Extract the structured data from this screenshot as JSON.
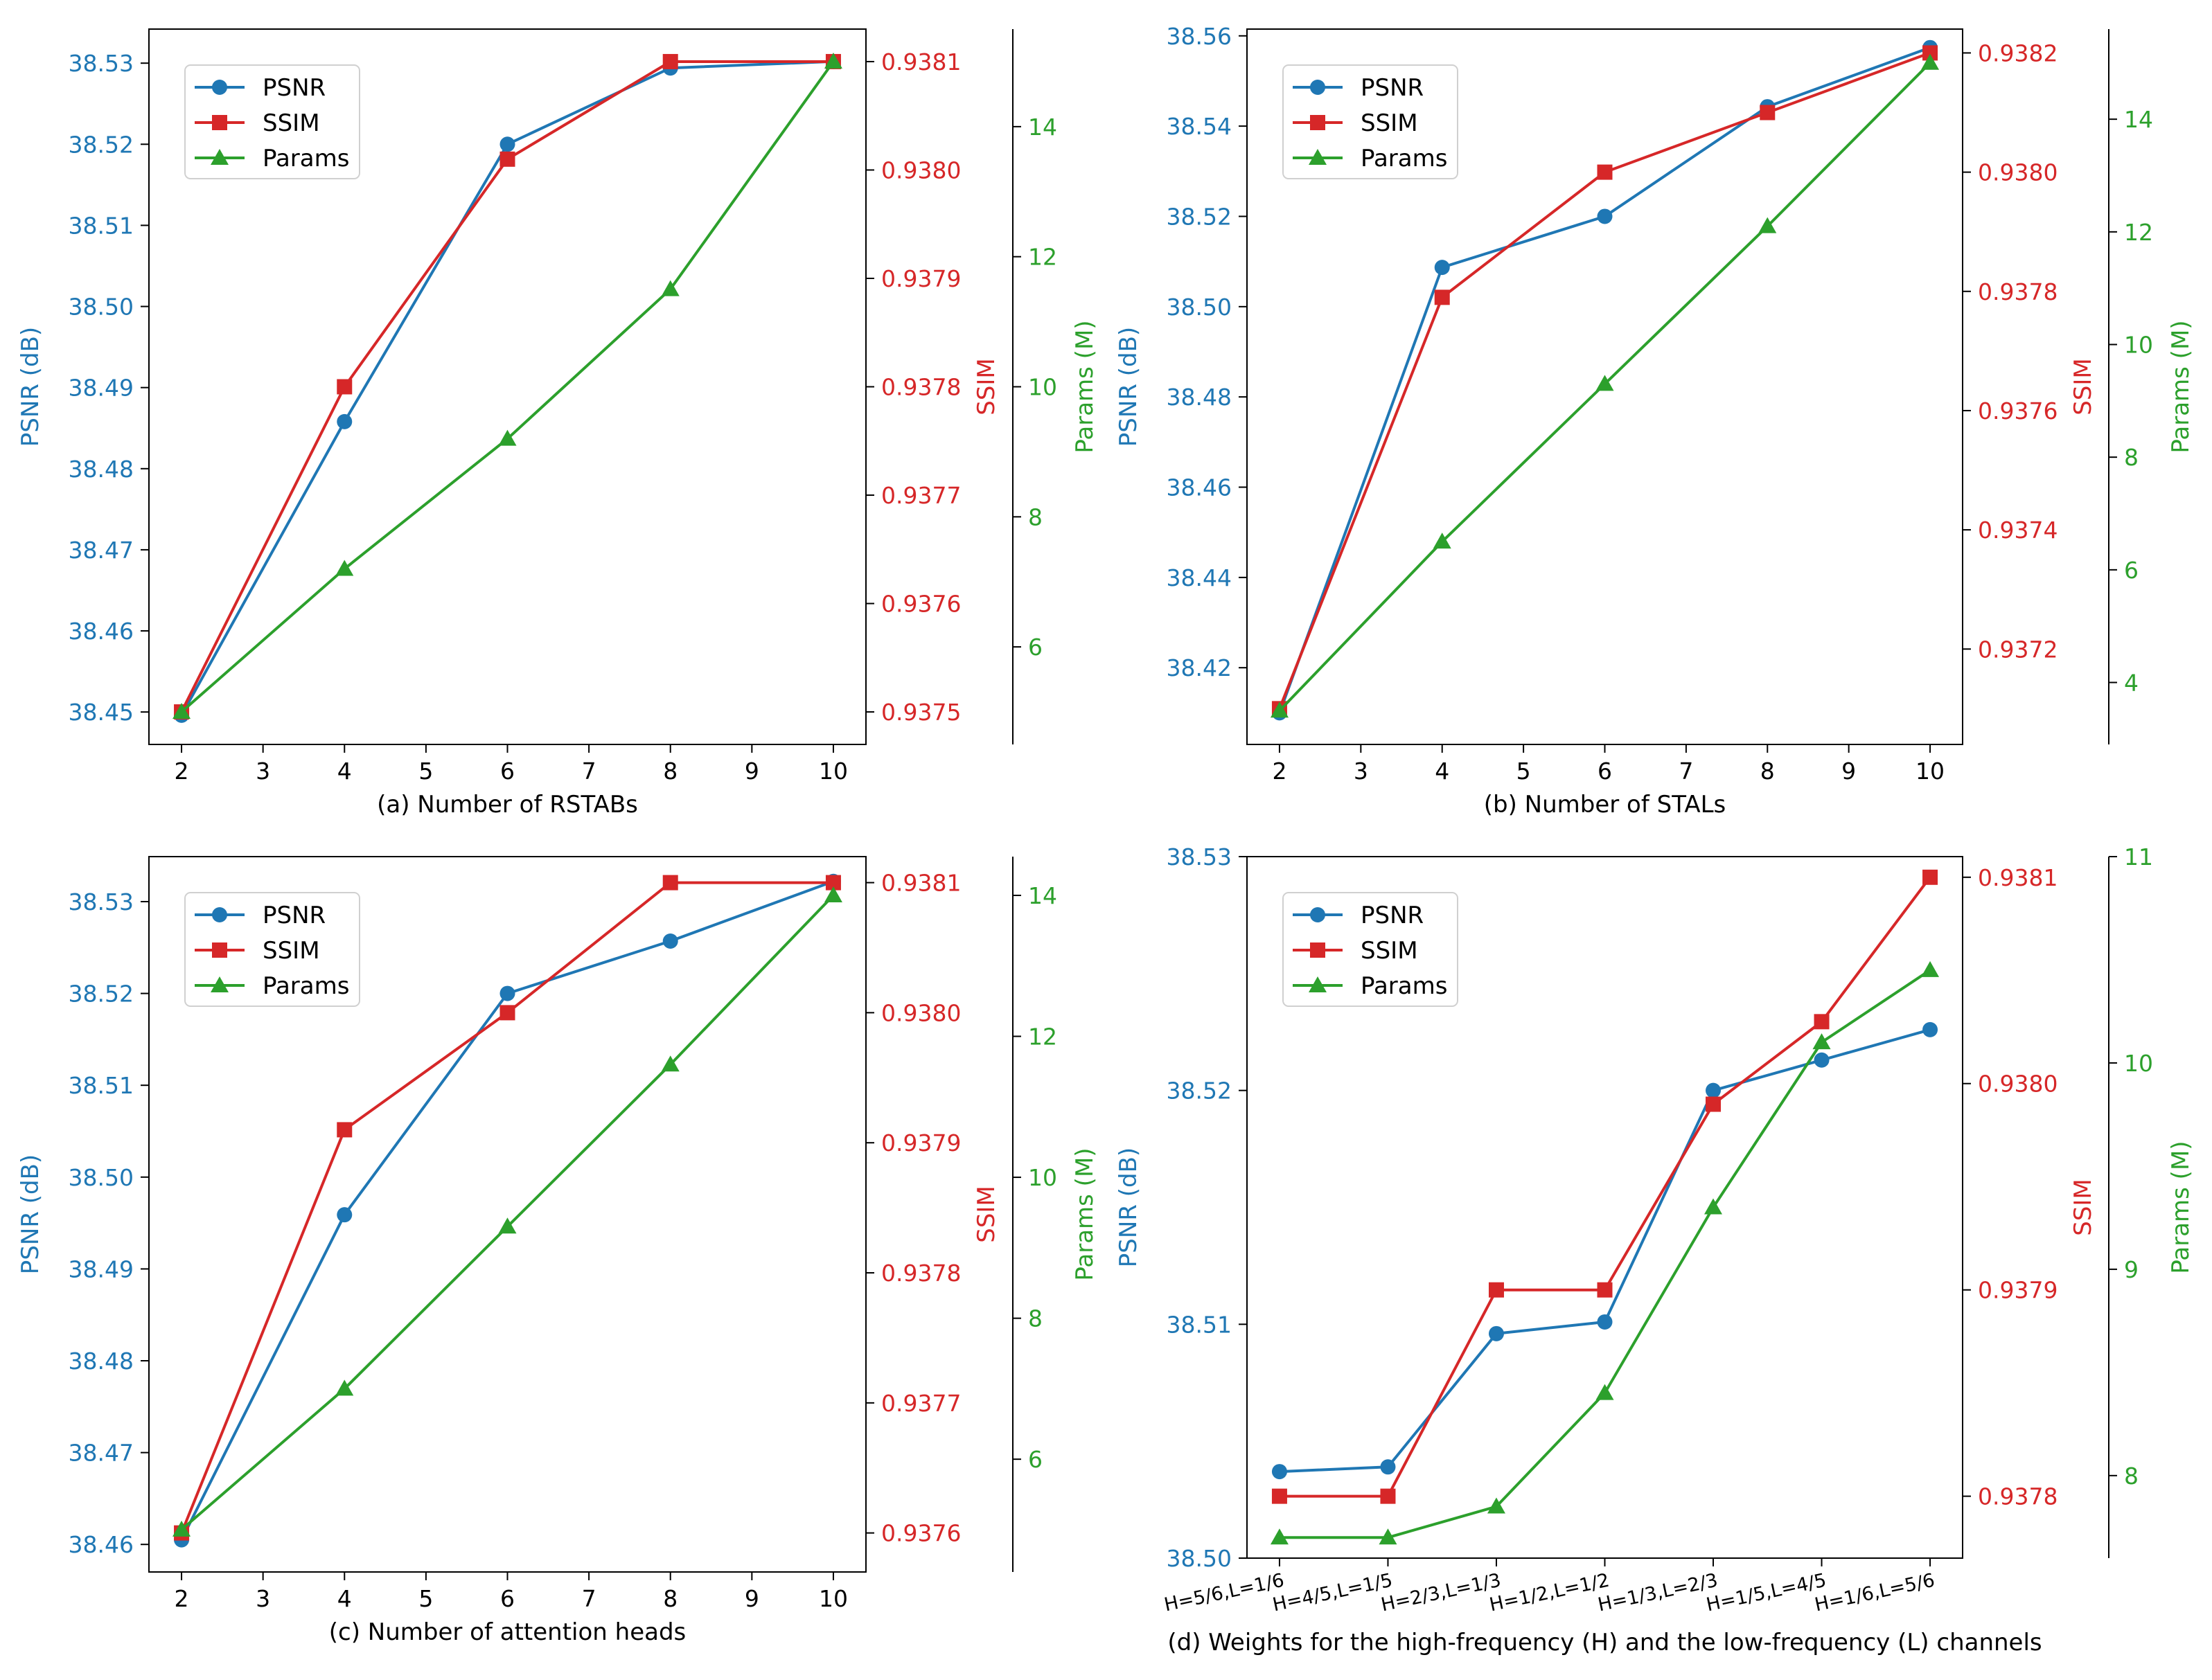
{
  "colors": {
    "psnr": "#1f77b4",
    "ssim": "#d62728",
    "params": "#2ca02c",
    "axis": "#000000"
  },
  "chart_data": [
    {
      "id": "a",
      "type": "line",
      "xlabel": "(a) Number of RSTABs",
      "categorical": false,
      "x": [
        2,
        4,
        6,
        8,
        10
      ],
      "xlim": [
        1.6,
        10.4
      ],
      "xticks": [
        {
          "v": 2,
          "label": "2"
        },
        {
          "v": 3,
          "label": "3"
        },
        {
          "v": 4,
          "label": "4"
        },
        {
          "v": 5,
          "label": "5"
        },
        {
          "v": 6,
          "label": "6"
        },
        {
          "v": 7,
          "label": "7"
        },
        {
          "v": 8,
          "label": "8"
        },
        {
          "v": 9,
          "label": "9"
        },
        {
          "v": 10,
          "label": "10"
        }
      ],
      "legend": [
        "PSNR",
        "SSIM",
        "Params"
      ],
      "legend_loc": "upper-left",
      "axes": [
        {
          "name": "PSNR (dB)",
          "key": "psnr",
          "lim": [
            38.446,
            38.5342
          ],
          "ticks": [
            {
              "v": 38.45,
              "label": "38.45"
            },
            {
              "v": 38.46,
              "label": "38.46"
            },
            {
              "v": 38.47,
              "label": "38.47"
            },
            {
              "v": 38.48,
              "label": "38.48"
            },
            {
              "v": 38.49,
              "label": "38.49"
            },
            {
              "v": 38.5,
              "label": "38.50"
            },
            {
              "v": 38.51,
              "label": "38.51"
            },
            {
              "v": 38.52,
              "label": "38.52"
            },
            {
              "v": 38.53,
              "label": "38.53"
            }
          ],
          "values": [
            38.4496,
            38.4858,
            38.52,
            38.5294,
            38.5302
          ],
          "marker": "circle"
        },
        {
          "name": "SSIM",
          "key": "ssim",
          "lim": [
            0.93747,
            0.93813
          ],
          "ticks": [
            {
              "v": 0.9375,
              "label": "0.9375"
            },
            {
              "v": 0.9376,
              "label": "0.9376"
            },
            {
              "v": 0.9377,
              "label": "0.9377"
            },
            {
              "v": 0.9378,
              "label": "0.9378"
            },
            {
              "v": 0.9379,
              "label": "0.9379"
            },
            {
              "v": 0.938,
              "label": "0.9380"
            },
            {
              "v": 0.9381,
              "label": "0.9381"
            }
          ],
          "values": [
            0.9375,
            0.9378,
            0.93801,
            0.9381,
            0.9381
          ],
          "marker": "square"
        },
        {
          "name": "Params (M)",
          "key": "params",
          "lim": [
            4.5,
            15.5
          ],
          "ticks": [
            {
              "v": 6,
              "label": "6"
            },
            {
              "v": 8,
              "label": "8"
            },
            {
              "v": 10,
              "label": "10"
            },
            {
              "v": 12,
              "label": "12"
            },
            {
              "v": 14,
              "label": "14"
            }
          ],
          "values": [
            5.0,
            7.2,
            9.2,
            11.5,
            15.0
          ],
          "marker": "triangle"
        }
      ]
    },
    {
      "id": "b",
      "type": "line",
      "xlabel": "(b) Number of STALs",
      "categorical": false,
      "x": [
        2,
        4,
        6,
        8,
        10
      ],
      "xlim": [
        1.6,
        10.4
      ],
      "xticks": [
        {
          "v": 2,
          "label": "2"
        },
        {
          "v": 3,
          "label": "3"
        },
        {
          "v": 4,
          "label": "4"
        },
        {
          "v": 5,
          "label": "5"
        },
        {
          "v": 6,
          "label": "6"
        },
        {
          "v": 7,
          "label": "7"
        },
        {
          "v": 8,
          "label": "8"
        },
        {
          "v": 9,
          "label": "9"
        },
        {
          "v": 10,
          "label": "10"
        }
      ],
      "legend": [
        "PSNR",
        "SSIM",
        "Params"
      ],
      "legend_loc": "upper-left",
      "axes": [
        {
          "name": "PSNR (dB)",
          "key": "psnr",
          "lim": [
            38.403,
            38.5615
          ],
          "ticks": [
            {
              "v": 38.42,
              "label": "38.42"
            },
            {
              "v": 38.44,
              "label": "38.44"
            },
            {
              "v": 38.46,
              "label": "38.46"
            },
            {
              "v": 38.48,
              "label": "38.48"
            },
            {
              "v": 38.5,
              "label": "38.50"
            },
            {
              "v": 38.52,
              "label": "38.52"
            },
            {
              "v": 38.54,
              "label": "38.54"
            },
            {
              "v": 38.56,
              "label": "38.56"
            }
          ],
          "values": [
            38.41,
            38.5087,
            38.52,
            38.5443,
            38.5574
          ],
          "marker": "circle"
        },
        {
          "name": "SSIM",
          "key": "ssim",
          "lim": [
            0.93704,
            0.93824
          ],
          "ticks": [
            {
              "v": 0.9372,
              "label": "0.9372"
            },
            {
              "v": 0.9374,
              "label": "0.9374"
            },
            {
              "v": 0.9376,
              "label": "0.9376"
            },
            {
              "v": 0.9378,
              "label": "0.9378"
            },
            {
              "v": 0.938,
              "label": "0.9380"
            },
            {
              "v": 0.9382,
              "label": "0.9382"
            }
          ],
          "values": [
            0.9371,
            0.93779,
            0.938,
            0.9381,
            0.9382
          ],
          "marker": "square"
        },
        {
          "name": "Params (M)",
          "key": "params",
          "lim": [
            2.9,
            15.6
          ],
          "ticks": [
            {
              "v": 4,
              "label": "4"
            },
            {
              "v": 6,
              "label": "6"
            },
            {
              "v": 8,
              "label": "8"
            },
            {
              "v": 10,
              "label": "10"
            },
            {
              "v": 12,
              "label": "12"
            },
            {
              "v": 14,
              "label": "14"
            }
          ],
          "values": [
            3.5,
            6.5,
            9.3,
            12.1,
            15.0
          ],
          "marker": "triangle"
        }
      ]
    },
    {
      "id": "c",
      "type": "line",
      "xlabel": "(c) Number of attention heads",
      "categorical": false,
      "x": [
        2,
        4,
        6,
        8,
        10
      ],
      "xlim": [
        1.6,
        10.4
      ],
      "xticks": [
        {
          "v": 2,
          "label": "2"
        },
        {
          "v": 3,
          "label": "3"
        },
        {
          "v": 4,
          "label": "4"
        },
        {
          "v": 5,
          "label": "5"
        },
        {
          "v": 6,
          "label": "6"
        },
        {
          "v": 7,
          "label": "7"
        },
        {
          "v": 8,
          "label": "8"
        },
        {
          "v": 9,
          "label": "9"
        },
        {
          "v": 10,
          "label": "10"
        }
      ],
      "legend": [
        "PSNR",
        "SSIM",
        "Params"
      ],
      "legend_loc": "upper-left",
      "axes": [
        {
          "name": "PSNR (dB)",
          "key": "psnr",
          "lim": [
            38.457,
            38.5349
          ],
          "ticks": [
            {
              "v": 38.46,
              "label": "38.46"
            },
            {
              "v": 38.47,
              "label": "38.47"
            },
            {
              "v": 38.48,
              "label": "38.48"
            },
            {
              "v": 38.49,
              "label": "38.49"
            },
            {
              "v": 38.5,
              "label": "38.50"
            },
            {
              "v": 38.51,
              "label": "38.51"
            },
            {
              "v": 38.52,
              "label": "38.52"
            },
            {
              "v": 38.53,
              "label": "38.53"
            }
          ],
          "values": [
            38.4605,
            38.4959,
            38.52,
            38.5257,
            38.5322
          ],
          "marker": "circle"
        },
        {
          "name": "SSIM",
          "key": "ssim",
          "lim": [
            0.93757,
            0.93812
          ],
          "ticks": [
            {
              "v": 0.9376,
              "label": "0.9376"
            },
            {
              "v": 0.9377,
              "label": "0.9377"
            },
            {
              "v": 0.9378,
              "label": "0.9378"
            },
            {
              "v": 0.9379,
              "label": "0.9379"
            },
            {
              "v": 0.938,
              "label": "0.9380"
            },
            {
              "v": 0.9381,
              "label": "0.9381"
            }
          ],
          "values": [
            0.9376,
            0.93791,
            0.938,
            0.9381,
            0.9381
          ],
          "marker": "square"
        },
        {
          "name": "Params (M)",
          "key": "params",
          "lim": [
            4.4,
            14.55
          ],
          "ticks": [
            {
              "v": 6,
              "label": "6"
            },
            {
              "v": 8,
              "label": "8"
            },
            {
              "v": 10,
              "label": "10"
            },
            {
              "v": 12,
              "label": "12"
            },
            {
              "v": 14,
              "label": "14"
            }
          ],
          "values": [
            5.0,
            7.0,
            9.3,
            11.6,
            14.0
          ],
          "marker": "triangle"
        }
      ]
    },
    {
      "id": "d",
      "type": "line",
      "xlabel": "(d) Weights for the high-frequency (H) and the low-frequency (L) channels",
      "categorical": true,
      "x": [
        0,
        1,
        2,
        3,
        4,
        5,
        6
      ],
      "xlim": [
        -0.3,
        6.3
      ],
      "xticks": [
        {
          "v": 0,
          "label": "H=5/6,L=1/6"
        },
        {
          "v": 1,
          "label": "H=4/5,L=1/5"
        },
        {
          "v": 2,
          "label": "H=2/3,L=1/3"
        },
        {
          "v": 3,
          "label": "H=1/2,L=1/2"
        },
        {
          "v": 4,
          "label": "H=1/3,L=2/3"
        },
        {
          "v": 5,
          "label": "H=1/5,L=4/5"
        },
        {
          "v": 6,
          "label": "H=1/6,L=5/6"
        }
      ],
      "legend": [
        "PSNR",
        "SSIM",
        "Params"
      ],
      "legend_loc": "upper-left",
      "axes": [
        {
          "name": "PSNR (dB)",
          "key": "psnr",
          "lim": [
            38.5,
            38.53
          ],
          "ticks": [
            {
              "v": 38.5,
              "label": "38.50"
            },
            {
              "v": 38.51,
              "label": "38.51"
            },
            {
              "v": 38.52,
              "label": "38.52"
            },
            {
              "v": 38.53,
              "label": "38.53"
            }
          ],
          "values": [
            38.5037,
            38.5039,
            38.5096,
            38.5101,
            38.52,
            38.5213,
            38.5226
          ],
          "marker": "circle"
        },
        {
          "name": "SSIM",
          "key": "ssim",
          "lim": [
            0.93777,
            0.93811
          ],
          "ticks": [
            {
              "v": 0.9378,
              "label": "0.9378"
            },
            {
              "v": 0.9379,
              "label": "0.9379"
            },
            {
              "v": 0.938,
              "label": "0.9380"
            },
            {
              "v": 0.9381,
              "label": "0.9381"
            }
          ],
          "values": [
            0.9378,
            0.9378,
            0.9379,
            0.9379,
            0.93799,
            0.93803,
            0.9381
          ],
          "marker": "square"
        },
        {
          "name": "Params (M)",
          "key": "params",
          "lim": [
            7.6,
            11.0
          ],
          "ticks": [
            {
              "v": 8,
              "label": "8"
            },
            {
              "v": 9,
              "label": "9"
            },
            {
              "v": 10,
              "label": "10"
            },
            {
              "v": 11,
              "label": "11"
            }
          ],
          "values": [
            7.7,
            7.7,
            7.85,
            8.4,
            9.3,
            10.1,
            10.45
          ],
          "marker": "triangle"
        }
      ]
    }
  ]
}
